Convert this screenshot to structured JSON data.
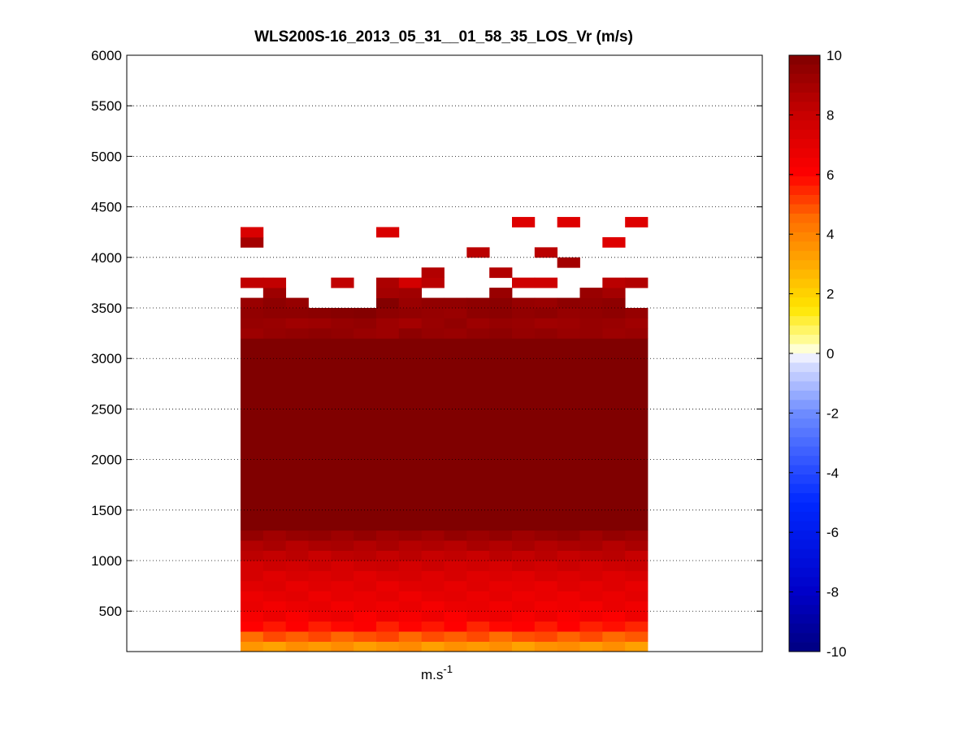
{
  "chart_data": {
    "type": "heatmap",
    "title": "WLS200S-16_2013_05_31__01_58_35_LOS_Vr (m/s)",
    "xlabel": "m.s",
    "xlabel_superscript": "-1",
    "ylabel": "",
    "ylim": [
      100,
      6000
    ],
    "yticks": [
      500,
      1000,
      1500,
      2000,
      2500,
      3000,
      3500,
      4000,
      4500,
      5000,
      5500,
      6000
    ],
    "grid": "horizontal-dotted",
    "colorbar": {
      "range": [
        -10,
        10
      ],
      "ticks": [
        10,
        8,
        6,
        4,
        2,
        0,
        -2,
        -4,
        -6,
        -8,
        -10
      ],
      "colormap": "blue-white-red-diverging"
    },
    "columns": 18,
    "range_gate_m": 100,
    "bottom_profile": [
      {
        "altitude_m": 150,
        "value": 3.5
      },
      {
        "altitude_m": 250,
        "value": 4.8
      },
      {
        "altitude_m": 350,
        "value": 5.8
      },
      {
        "altitude_m": 450,
        "value": 6.4
      },
      {
        "altitude_m": 550,
        "value": 6.6
      },
      {
        "altitude_m": 650,
        "value": 6.8
      },
      {
        "altitude_m": 750,
        "value": 7.0
      },
      {
        "altitude_m": 850,
        "value": 7.3
      },
      {
        "altitude_m": 950,
        "value": 7.7
      },
      {
        "altitude_m": 1050,
        "value": 8.2
      },
      {
        "altitude_m": 1150,
        "value": 8.7
      },
      {
        "altitude_m": 1250,
        "value": 9.3
      }
    ],
    "saturated_layer": {
      "from_m": 1300,
      "to_m": 3200,
      "value": 10
    },
    "upper_layer_values": {
      "3250": [
        9.2,
        9.4,
        9.5,
        9.6,
        9.5,
        9.3,
        9.2,
        9.6,
        9.4,
        9.3,
        9.5,
        9.6,
        9.4,
        9.5,
        9.3,
        9.4,
        9.2,
        9.3
      ],
      "3350": [
        9.4,
        9.3,
        9.1,
        9.2,
        9.4,
        9.5,
        9.2,
        9.0,
        9.3,
        9.5,
        9.2,
        9.4,
        9.3,
        9.1,
        9.2,
        9.4,
        9.3,
        9.1
      ],
      "3450": [
        9.5,
        9.6,
        9.6,
        9.7,
        9.8,
        9.9,
        9.6,
        9.5,
        9.4,
        9.3,
        9.6,
        9.7,
        9.5,
        9.6,
        9.4,
        9.5,
        9.6,
        9.4
      ],
      "3550": [
        9.3,
        9.6,
        9.4,
        null,
        null,
        null,
        9.9,
        9.3,
        9.5,
        9.5,
        9.6,
        9.7,
        9.4,
        9.3,
        9.6,
        9.5,
        9.6,
        null
      ],
      "3650": [
        null,
        9.2,
        null,
        null,
        null,
        null,
        9.0,
        9.1,
        null,
        null,
        null,
        9.3,
        null,
        null,
        null,
        9.3,
        9.0,
        null
      ],
      "3750": [
        8.2,
        8.2,
        null,
        null,
        8.2,
        null,
        8.8,
        7.6,
        8.4,
        null,
        null,
        null,
        7.8,
        7.8,
        null,
        null,
        8.4,
        8.6
      ],
      "3850": [
        null,
        null,
        null,
        null,
        null,
        null,
        null,
        null,
        8.6,
        null,
        null,
        8.6,
        null,
        null,
        null,
        null,
        null,
        null
      ],
      "3950": [
        null,
        null,
        null,
        null,
        null,
        null,
        null,
        null,
        null,
        null,
        null,
        null,
        null,
        null,
        9.0,
        null,
        null,
        null
      ],
      "4050": [
        null,
        null,
        null,
        null,
        null,
        null,
        null,
        null,
        null,
        null,
        8.4,
        null,
        null,
        8.4,
        null,
        null,
        null,
        null
      ],
      "4150": [
        9.0,
        null,
        null,
        null,
        null,
        null,
        null,
        null,
        null,
        null,
        null,
        null,
        null,
        null,
        null,
        null,
        7.2,
        null
      ],
      "4250": [
        7.4,
        null,
        null,
        null,
        null,
        null,
        7.4,
        null,
        null,
        null,
        null,
        null,
        null,
        null,
        null,
        null,
        null,
        null
      ],
      "4350": [
        null,
        null,
        null,
        null,
        null,
        null,
        null,
        null,
        null,
        null,
        null,
        null,
        7.2,
        null,
        7.2,
        null,
        null,
        7.2
      ]
    }
  }
}
